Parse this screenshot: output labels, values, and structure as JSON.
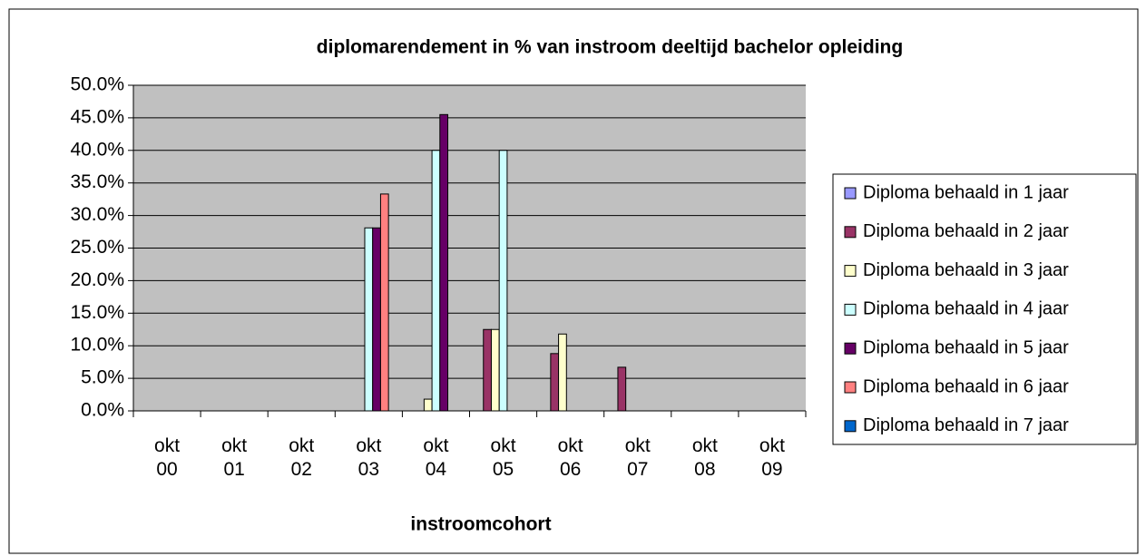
{
  "chart_data": {
    "type": "bar",
    "title": "diplomarendement in % van instroom deeltijd bachelor opleiding",
    "x_label": "instroomcohort",
    "categories": [
      "okt 00",
      "okt 01",
      "okt 02",
      "okt 03",
      "okt 04",
      "okt 05",
      "okt 06",
      "okt 07",
      "okt 08",
      "okt 09"
    ],
    "series": [
      {
        "name": "Diploma behaald in 1 jaar",
        "color": "#9999ff",
        "values": [
          null,
          null,
          null,
          null,
          null,
          null,
          null,
          null,
          null,
          null
        ]
      },
      {
        "name": "Diploma behaald in 2 jaar",
        "color": "#993366",
        "values": [
          null,
          null,
          null,
          null,
          null,
          12.5,
          8.8,
          6.7,
          null,
          null
        ]
      },
      {
        "name": "Diploma behaald in 3 jaar",
        "color": "#ffffcc",
        "values": [
          null,
          null,
          null,
          null,
          1.8,
          12.5,
          11.8,
          null,
          null,
          null
        ]
      },
      {
        "name": "Diploma behaald in 4 jaar",
        "color": "#ccffff",
        "values": [
          null,
          null,
          null,
          28.1,
          40,
          40,
          null,
          null,
          null,
          null
        ]
      },
      {
        "name": "Diploma behaald in 5 jaar",
        "color": "#660066",
        "values": [
          null,
          null,
          null,
          28.1,
          45.5,
          null,
          null,
          null,
          null,
          null
        ]
      },
      {
        "name": "Diploma behaald in 6 jaar",
        "color": "#ff8080",
        "values": [
          null,
          null,
          null,
          33.3,
          null,
          null,
          null,
          null,
          null,
          null
        ]
      },
      {
        "name": "Diploma behaald in 7 jaar",
        "color": "#0066cc",
        "values": [
          null,
          null,
          null,
          null,
          null,
          null,
          null,
          null,
          null,
          null
        ]
      }
    ],
    "ylim": [
      0,
      50
    ],
    "yticks": [
      {
        "value": 0,
        "label": "0.0%"
      },
      {
        "value": 5,
        "label": "5.0%"
      },
      {
        "value": 10,
        "label": "10.0%"
      },
      {
        "value": 15,
        "label": "15.0%"
      },
      {
        "value": 20,
        "label": "20.0%"
      },
      {
        "value": 25,
        "label": "25.0%"
      },
      {
        "value": 30,
        "label": "30.0%"
      },
      {
        "value": 35,
        "label": "35.0%"
      },
      {
        "value": 40,
        "label": "40.0%"
      },
      {
        "value": 45,
        "label": "45.0%"
      },
      {
        "value": 50,
        "label": "50.0%"
      }
    ],
    "grid": true,
    "legend": "right"
  }
}
